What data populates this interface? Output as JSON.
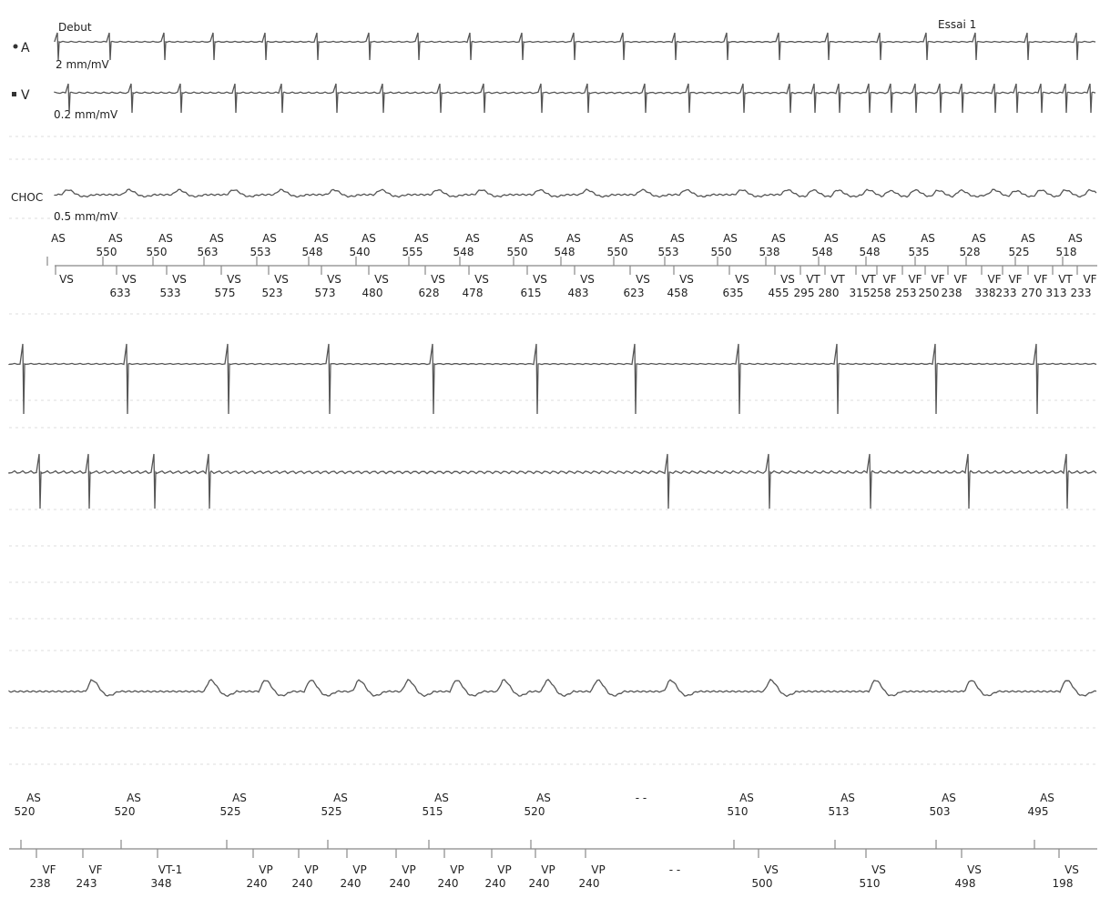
{
  "header": {
    "start": "Debut",
    "test": "Essai 1"
  },
  "channels": [
    {
      "name": "A",
      "gain": "2 mm/mV"
    },
    {
      "name": "V",
      "gain": "0.2 mm/mV"
    },
    {
      "name": "CHOC",
      "gain": "0.5 mm/mV"
    }
  ],
  "strips": [
    {
      "atrial": [
        {
          "code": "AS"
        },
        {
          "code": "AS",
          "interval": 550
        },
        {
          "code": "AS",
          "interval": 550
        },
        {
          "code": "AS",
          "interval": 563
        },
        {
          "code": "AS",
          "interval": 553
        },
        {
          "code": "AS",
          "interval": 548
        },
        {
          "code": "AS",
          "interval": 540
        },
        {
          "code": "AS",
          "interval": 555
        },
        {
          "code": "AS",
          "interval": 548
        },
        {
          "code": "AS",
          "interval": 550
        },
        {
          "code": "AS",
          "interval": 548
        },
        {
          "code": "AS",
          "interval": 550
        },
        {
          "code": "AS",
          "interval": 553
        },
        {
          "code": "AS",
          "interval": 550
        },
        {
          "code": "AS",
          "interval": 538
        },
        {
          "code": "AS",
          "interval": 548
        },
        {
          "code": "AS",
          "interval": 548
        },
        {
          "code": "AS",
          "interval": 535
        },
        {
          "code": "AS",
          "interval": 528
        },
        {
          "code": "AS",
          "interval": 525
        },
        {
          "code": "AS",
          "interval": 518
        }
      ],
      "ventricular": [
        {
          "code": "VS"
        },
        {
          "code": "VS",
          "interval": 633
        },
        {
          "code": "VS",
          "interval": 533
        },
        {
          "code": "VS",
          "interval": 575
        },
        {
          "code": "VS",
          "interval": 523
        },
        {
          "code": "VS",
          "interval": 573
        },
        {
          "code": "VS",
          "interval": 480
        },
        {
          "code": "VS",
          "interval": 628
        },
        {
          "code": "VS",
          "interval": 478
        },
        {
          "code": "VS",
          "interval": 615
        },
        {
          "code": "VS",
          "interval": 483
        },
        {
          "code": "VS",
          "interval": 623
        },
        {
          "code": "VS",
          "interval": 458
        },
        {
          "code": "VS",
          "interval": 635
        },
        {
          "code": "VS",
          "interval": 455
        },
        {
          "code": "VT",
          "interval": 295
        },
        {
          "code": "VT",
          "interval": 280
        },
        {
          "code": "VT",
          "interval": 315
        },
        {
          "code": "VF",
          "interval": 258
        },
        {
          "code": "VF",
          "interval": 253
        },
        {
          "code": "VF",
          "interval": 250
        },
        {
          "code": "VF",
          "interval": 238
        },
        {
          "code": "VF",
          "interval": 338
        },
        {
          "code": "VF",
          "interval": 233
        },
        {
          "code": "VF",
          "interval": 270
        },
        {
          "code": "VT",
          "interval": 313
        },
        {
          "code": "VF",
          "interval": 233
        }
      ]
    },
    {
      "atrial": [
        {
          "code": "AS",
          "interval": 520
        },
        {
          "code": "AS",
          "interval": 520
        },
        {
          "code": "AS",
          "interval": 525
        },
        {
          "code": "AS",
          "interval": 525
        },
        {
          "code": "AS",
          "interval": 515
        },
        {
          "code": "AS",
          "interval": 520
        },
        {
          "code": "- -"
        },
        {
          "code": "AS",
          "interval": 510
        },
        {
          "code": "AS",
          "interval": 513
        },
        {
          "code": "AS",
          "interval": 503
        },
        {
          "code": "AS",
          "interval": 495
        }
      ],
      "ventricular": [
        {
          "code": "VF",
          "interval": 238
        },
        {
          "code": "VF",
          "interval": 243
        },
        {
          "code": "VT-1",
          "interval": 348
        },
        {
          "code": "VP",
          "interval": 240
        },
        {
          "code": "VP",
          "interval": 240
        },
        {
          "code": "VP",
          "interval": 240
        },
        {
          "code": "VP",
          "interval": 240
        },
        {
          "code": "VP",
          "interval": 240
        },
        {
          "code": "VP",
          "interval": 240
        },
        {
          "code": "VP",
          "interval": 240
        },
        {
          "code": "VP",
          "interval": 240
        },
        {
          "code": "- -"
        },
        {
          "code": "VS",
          "interval": 500
        },
        {
          "code": "VS",
          "interval": 510
        },
        {
          "code": "VS",
          "interval": 498
        },
        {
          "code": "VS",
          "interval": 198
        }
      ]
    }
  ]
}
